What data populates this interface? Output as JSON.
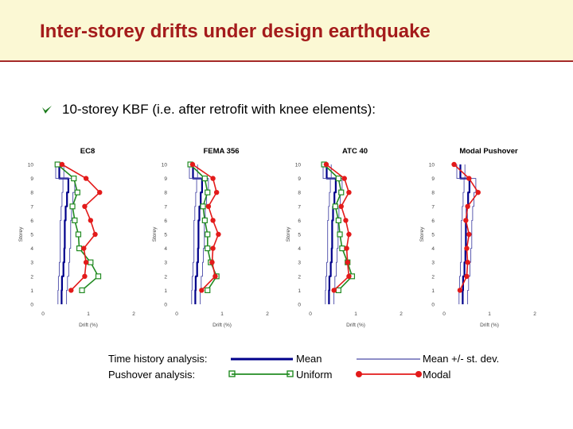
{
  "slide": {
    "title": "Inter-storey drifts under design earthquake",
    "bullet": "10-storey KBF (i.e. after retrofit with knee elements):"
  },
  "colors": {
    "accent": "#a41b1b",
    "mean": "#00008b",
    "stdev": "#4a4aa8",
    "uniform": "#228b22",
    "modal": "#e31a1a"
  },
  "chart_data": [
    {
      "type": "line",
      "title": "EC8",
      "xlabel": "Drift (%)",
      "ylabel": "Storey",
      "xlim": [
        0,
        2
      ],
      "ylim": [
        0,
        10
      ],
      "xticks": [
        "0",
        "1",
        "2"
      ],
      "yticks": [
        "0",
        "1",
        "2",
        "3",
        "4",
        "5",
        "6",
        "7",
        "8",
        "9",
        "10"
      ],
      "storeys": [
        1,
        2,
        3,
        4,
        5,
        6,
        7,
        8,
        9,
        10
      ],
      "series": [
        {
          "name": "Mean",
          "values": [
            0.41,
            0.42,
            0.45,
            0.47,
            0.48,
            0.48,
            0.5,
            0.53,
            0.56,
            0.36
          ]
        },
        {
          "name": "Mean - st. dev.",
          "values": [
            0.33,
            0.34,
            0.36,
            0.38,
            0.38,
            0.38,
            0.4,
            0.42,
            0.44,
            0.28
          ]
        },
        {
          "name": "Mean + st. dev.",
          "values": [
            0.52,
            0.54,
            0.57,
            0.59,
            0.61,
            0.61,
            0.63,
            0.66,
            0.7,
            0.46
          ]
        },
        {
          "name": "Uniform",
          "values": [
            0.86,
            1.22,
            1.05,
            0.8,
            0.78,
            0.7,
            0.65,
            0.76,
            0.68,
            0.32
          ]
        },
        {
          "name": "Modal",
          "values": [
            0.62,
            0.92,
            0.95,
            0.9,
            1.15,
            1.05,
            0.92,
            1.25,
            0.95,
            0.42
          ]
        }
      ]
    },
    {
      "type": "line",
      "title": "FEMA 356",
      "xlabel": "Drift (%)",
      "ylabel": "Storey",
      "xlim": [
        0,
        2
      ],
      "ylim": [
        0,
        10
      ],
      "xticks": [
        "0",
        "1",
        "2"
      ],
      "yticks": [
        "0",
        "1",
        "2",
        "3",
        "4",
        "5",
        "6",
        "7",
        "8",
        "9",
        "10"
      ],
      "storeys": [
        1,
        2,
        3,
        4,
        5,
        6,
        7,
        8,
        9,
        10
      ],
      "series": [
        {
          "name": "Mean",
          "values": [
            0.41,
            0.42,
            0.45,
            0.47,
            0.48,
            0.48,
            0.5,
            0.53,
            0.56,
            0.36
          ]
        },
        {
          "name": "Mean - st. dev.",
          "values": [
            0.33,
            0.34,
            0.36,
            0.38,
            0.38,
            0.38,
            0.4,
            0.42,
            0.44,
            0.28
          ]
        },
        {
          "name": "Mean + st. dev.",
          "values": [
            0.52,
            0.54,
            0.57,
            0.59,
            0.61,
            0.61,
            0.63,
            0.66,
            0.7,
            0.46
          ]
        },
        {
          "name": "Uniform",
          "values": [
            0.68,
            0.88,
            0.75,
            0.68,
            0.68,
            0.62,
            0.58,
            0.68,
            0.62,
            0.3
          ]
        },
        {
          "name": "Modal",
          "values": [
            0.55,
            0.85,
            0.78,
            0.8,
            0.92,
            0.8,
            0.7,
            0.88,
            0.8,
            0.35
          ]
        }
      ]
    },
    {
      "type": "line",
      "title": "ATC 40",
      "xlabel": "Drift (%)",
      "ylabel": "Storey",
      "xlim": [
        0,
        2
      ],
      "ylim": [
        0,
        10
      ],
      "xticks": [
        "0",
        "1",
        "2"
      ],
      "yticks": [
        "0",
        "1",
        "2",
        "3",
        "4",
        "5",
        "6",
        "7",
        "8",
        "9",
        "10"
      ],
      "storeys": [
        1,
        2,
        3,
        4,
        5,
        6,
        7,
        8,
        9,
        10
      ],
      "series": [
        {
          "name": "Mean",
          "values": [
            0.41,
            0.42,
            0.45,
            0.47,
            0.48,
            0.48,
            0.5,
            0.53,
            0.56,
            0.36
          ]
        },
        {
          "name": "Mean - st. dev.",
          "values": [
            0.33,
            0.34,
            0.36,
            0.38,
            0.38,
            0.38,
            0.4,
            0.42,
            0.44,
            0.28
          ]
        },
        {
          "name": "Mean + st. dev.",
          "values": [
            0.52,
            0.54,
            0.57,
            0.59,
            0.61,
            0.61,
            0.63,
            0.66,
            0.7,
            0.46
          ]
        },
        {
          "name": "Uniform",
          "values": [
            0.62,
            0.92,
            0.82,
            0.7,
            0.65,
            0.62,
            0.55,
            0.68,
            0.62,
            0.3
          ]
        },
        {
          "name": "Modal",
          "values": [
            0.52,
            0.85,
            0.82,
            0.8,
            0.85,
            0.78,
            0.68,
            0.85,
            0.75,
            0.35
          ]
        }
      ]
    },
    {
      "type": "line",
      "title": "Modal Pushover",
      "xlabel": "Drift (%)",
      "ylabel": "Storey",
      "xlim": [
        0,
        2
      ],
      "ylim": [
        0,
        10
      ],
      "xticks": [
        "0",
        "1",
        "2"
      ],
      "yticks": [
        "0",
        "1",
        "2",
        "3",
        "4",
        "5",
        "6",
        "7",
        "8",
        "9",
        "10"
      ],
      "storeys": [
        1,
        2,
        3,
        4,
        5,
        6,
        7,
        8,
        9,
        10
      ],
      "series": [
        {
          "name": "Mean",
          "values": [
            0.41,
            0.42,
            0.45,
            0.47,
            0.48,
            0.48,
            0.5,
            0.53,
            0.56,
            0.36
          ]
        },
        {
          "name": "Mean - st. dev.",
          "values": [
            0.33,
            0.34,
            0.36,
            0.38,
            0.38,
            0.38,
            0.4,
            0.42,
            0.44,
            0.28
          ]
        },
        {
          "name": "Mean + st. dev.",
          "values": [
            0.52,
            0.54,
            0.57,
            0.59,
            0.61,
            0.61,
            0.63,
            0.66,
            0.7,
            0.46
          ]
        },
        {
          "name": "Modal",
          "values": [
            0.35,
            0.5,
            0.52,
            0.5,
            0.55,
            0.48,
            0.52,
            0.75,
            0.55,
            0.22
          ]
        }
      ]
    }
  ],
  "legend": {
    "time_history_label": "Time history analysis:",
    "pushover_label": "Pushover analysis:",
    "mean_label": "Mean",
    "stdev_label": "Mean +/- st. dev.",
    "uniform_label": "Uniform",
    "modal_label": "Modal"
  }
}
